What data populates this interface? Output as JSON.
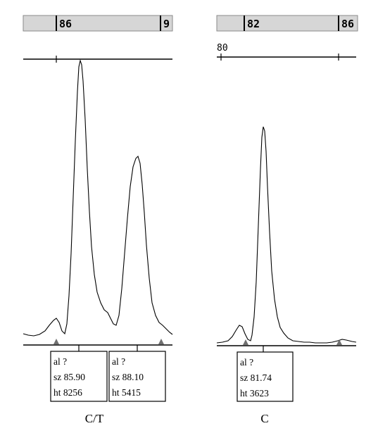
{
  "chart_data": [
    {
      "type": "line",
      "caption": "C/T",
      "ruler_labels": [
        "86",
        "9"
      ],
      "peaks": [
        {
          "allele": "al ?",
          "size": "sz 85.90",
          "height": "ht 8256",
          "size_value": 85.9,
          "height_value": 8256
        },
        {
          "allele": "al ?",
          "size": "sz 88.10",
          "height": "ht 5415",
          "size_value": 88.1,
          "height_value": 5415
        }
      ]
    },
    {
      "type": "line",
      "caption": "C",
      "ruler_labels": [
        "82",
        "86"
      ],
      "scale_label": "80",
      "peaks": [
        {
          "allele": "al ?",
          "size": "sz 81.74",
          "height": "ht 3623",
          "size_value": 81.74,
          "height_value": 3623
        }
      ]
    }
  ]
}
